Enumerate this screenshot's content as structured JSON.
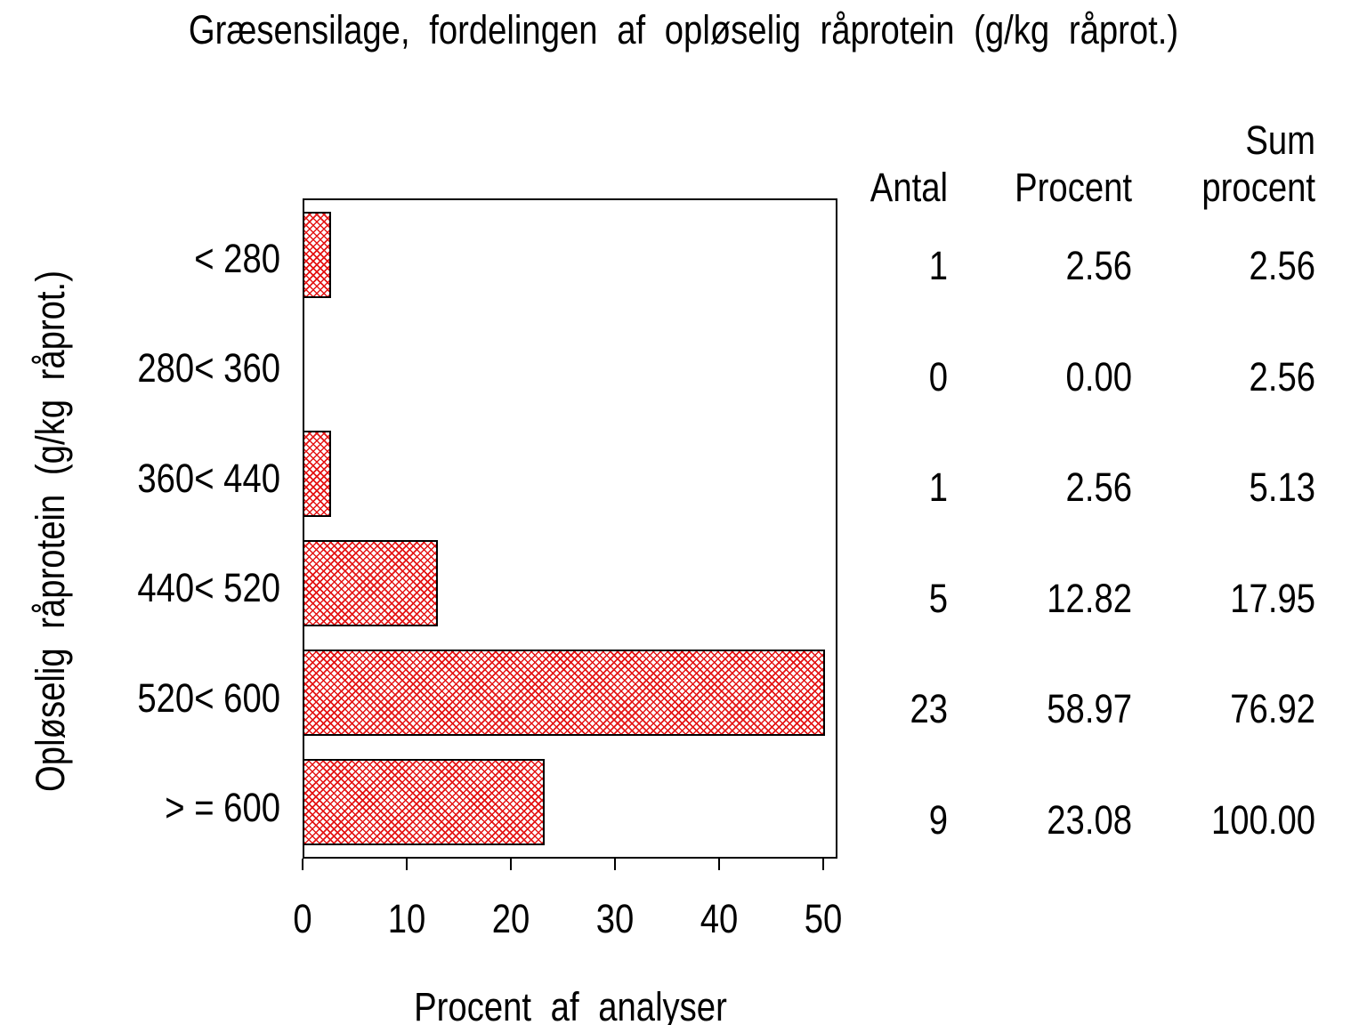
{
  "chart_data": {
    "type": "bar",
    "orientation": "horizontal",
    "title": "Græsensilage, fordelingen af opløselig råprotein (g/kg råprot.)",
    "categories": [
      "< 280",
      "280< 360",
      "360< 440",
      "440< 520",
      "520< 600",
      "> = 600"
    ],
    "series": [
      {
        "name": "Procent af analyser",
        "values": [
          2.56,
          0.0,
          2.56,
          12.82,
          58.97,
          23.08
        ]
      }
    ],
    "xlabel": "Procent af analyser",
    "ylabel": "Opløselig råprotein (g/kg råprot.)",
    "xlim": [
      0,
      50
    ],
    "xticks": [
      "0",
      "10",
      "20",
      "30",
      "40",
      "50"
    ],
    "grid": false,
    "legend": "none",
    "bars_clipped_at_xmax": true,
    "hatch_color": "#e41414",
    "frame_color": "#000000",
    "table": {
      "headers": {
        "antal": "Antal",
        "procent": "Procent",
        "sum_line1": "Sum",
        "sum_line2": "procent"
      },
      "rows": [
        {
          "antal": "1",
          "procent": "2.56",
          "sum": "2.56"
        },
        {
          "antal": "0",
          "procent": "0.00",
          "sum": "2.56"
        },
        {
          "antal": "1",
          "procent": "2.56",
          "sum": "5.13"
        },
        {
          "antal": "5",
          "procent": "12.82",
          "sum": "17.95"
        },
        {
          "antal": "23",
          "procent": "58.97",
          "sum": "76.92"
        },
        {
          "antal": "9",
          "procent": "23.08",
          "sum": "100.00"
        }
      ]
    }
  }
}
